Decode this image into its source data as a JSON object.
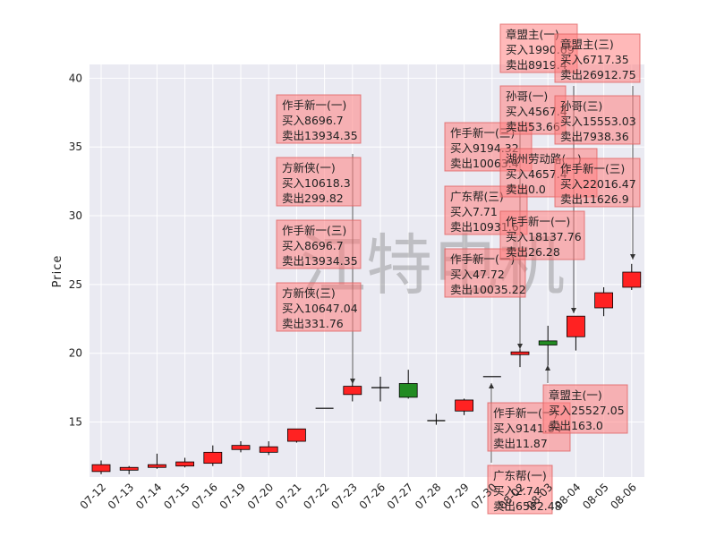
{
  "chart_data": {
    "type": "candlestick",
    "ylabel": "Price",
    "ylim": [
      11,
      41
    ],
    "yticks": [
      15,
      20,
      25,
      30,
      35,
      40
    ],
    "grid": true,
    "watermark": "江特电机",
    "categories": [
      "07-12",
      "07-13",
      "07-14",
      "07-15",
      "07-16",
      "07-19",
      "07-20",
      "07-21",
      "07-22",
      "07-23",
      "07-26",
      "07-27",
      "07-28",
      "07-29",
      "07-30",
      "08-02",
      "08-03",
      "08-04",
      "08-05",
      "08-06"
    ],
    "candles": [
      {
        "date": "07-12",
        "open": 11.4,
        "close": 11.9,
        "high": 12.2,
        "low": 11.2,
        "color": "#ff2222"
      },
      {
        "date": "07-13",
        "open": 11.5,
        "close": 11.7,
        "high": 11.8,
        "low": 11.2,
        "color": "#ff2222"
      },
      {
        "date": "07-14",
        "open": 11.7,
        "close": 11.9,
        "high": 12.7,
        "low": 11.6,
        "color": "#ff2222"
      },
      {
        "date": "07-15",
        "open": 11.8,
        "close": 12.1,
        "high": 12.4,
        "low": 11.7,
        "color": "#ff2222"
      },
      {
        "date": "07-16",
        "open": 12.0,
        "close": 12.8,
        "high": 13.3,
        "low": 11.8,
        "color": "#ff2222"
      },
      {
        "date": "07-19",
        "open": 13.0,
        "close": 13.3,
        "high": 13.6,
        "low": 12.8,
        "color": "#ff2222"
      },
      {
        "date": "07-20",
        "open": 12.8,
        "close": 13.2,
        "high": 13.6,
        "low": 12.6,
        "color": "#ff2222"
      },
      {
        "date": "07-21",
        "open": 13.6,
        "close": 14.5,
        "high": 14.5,
        "low": 13.5,
        "color": "#ff2222"
      },
      {
        "date": "07-22",
        "open": 16.0,
        "close": 16.0,
        "high": 16.0,
        "low": 16.0,
        "color": "#ff2222"
      },
      {
        "date": "07-23",
        "open": 17.0,
        "close": 17.6,
        "high": 17.9,
        "low": 16.5,
        "color": "#ff2222"
      },
      {
        "date": "07-26",
        "open": 17.5,
        "close": 17.5,
        "high": 18.3,
        "low": 16.5,
        "color": "#000000"
      },
      {
        "date": "07-27",
        "open": 17.8,
        "close": 16.8,
        "high": 18.8,
        "low": 16.7,
        "color": "#228B22"
      },
      {
        "date": "07-28",
        "open": 15.1,
        "close": 15.1,
        "high": 15.6,
        "low": 14.8,
        "color": "#000000"
      },
      {
        "date": "07-29",
        "open": 15.8,
        "close": 16.6,
        "high": 16.7,
        "low": 15.5,
        "color": "#ff2222"
      },
      {
        "date": "07-30",
        "open": 18.3,
        "close": 18.3,
        "high": 18.3,
        "low": 18.3,
        "color": "#000000"
      },
      {
        "date": "08-02",
        "open": 19.9,
        "close": 20.1,
        "high": 20.3,
        "low": 19.0,
        "color": "#ff2222"
      },
      {
        "date": "08-03",
        "open": 20.9,
        "close": 20.6,
        "high": 22.0,
        "low": 19.1,
        "color": "#228B22"
      },
      {
        "date": "08-04",
        "open": 21.2,
        "close": 22.7,
        "high": 22.7,
        "low": 20.2,
        "color": "#ff2222"
      },
      {
        "date": "08-05",
        "open": 23.3,
        "close": 24.4,
        "high": 24.8,
        "low": 22.7,
        "color": "#ff2222"
      },
      {
        "date": "08-06",
        "open": 24.8,
        "close": 25.9,
        "high": 26.5,
        "low": 24.6,
        "color": "#ff2222"
      }
    ],
    "annotations": [
      {
        "lines": [
          "作手新一(一)",
          "买入8696.7",
          "卖出13934.35"
        ]
      },
      {
        "lines": [
          "方新侠(一)",
          "买入10618.3",
          "卖出299.82"
        ]
      },
      {
        "lines": [
          "作手新一(三)",
          "买入8696.7",
          "卖出13934.35"
        ]
      },
      {
        "lines": [
          "方新侠(三)",
          "买入10647.04",
          "卖出331.76"
        ]
      },
      {
        "lines": [
          "作手新一(三)",
          "买入9194.32",
          "卖出10063.4"
        ]
      },
      {
        "lines": [
          "广东帮(三)",
          "买入7.71",
          "卖出10931.6"
        ]
      },
      {
        "lines": [
          "作手新一(一)",
          "买入47.72",
          "卖出10035.22"
        ]
      },
      {
        "lines": [
          "章盟主(一)",
          "买入1990.69",
          "卖出8919.4"
        ]
      },
      {
        "lines": [
          "孙哥(一)",
          "买入4567.4",
          "卖出53.66"
        ]
      },
      {
        "lines": [
          "湖州劳动路(一)",
          "买入4657.4",
          "卖出0.0"
        ]
      },
      {
        "lines": [
          "作手新一(一)",
          "买入18137.76",
          "卖出26.28"
        ]
      },
      {
        "lines": [
          "章盟主(三)",
          "买入6717.35",
          "卖出26912.75"
        ]
      },
      {
        "lines": [
          "孙哥(三)",
          "买入15553.03",
          "卖出7938.36"
        ]
      },
      {
        "lines": [
          "作手新一(三)",
          "买入22016.47",
          "卖出11626.9"
        ]
      },
      {
        "lines": [
          "作手新一(一)",
          "买入9141.84",
          "卖出11.87"
        ]
      },
      {
        "lines": [
          "广东帮(一)",
          "买入2.74",
          "卖出6582.48"
        ]
      },
      {
        "lines": [
          "章盟主(一)",
          "买入25527.05",
          "卖出163.0"
        ]
      }
    ]
  }
}
